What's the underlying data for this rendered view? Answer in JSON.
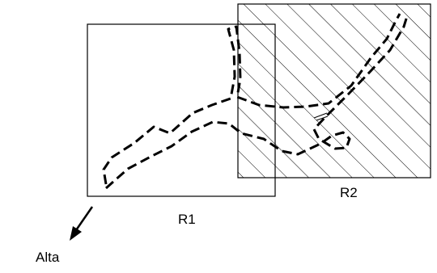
{
  "diagram": {
    "region1": {
      "label": "R1"
    },
    "region2": {
      "label": "R2",
      "fill": "diagonal-hatch"
    },
    "direction": {
      "label": "Alta",
      "icon": "arrow-down-left-icon"
    },
    "outline_style": "dashed",
    "colors": {
      "line": "#000000",
      "background": "#ffffff"
    }
  }
}
